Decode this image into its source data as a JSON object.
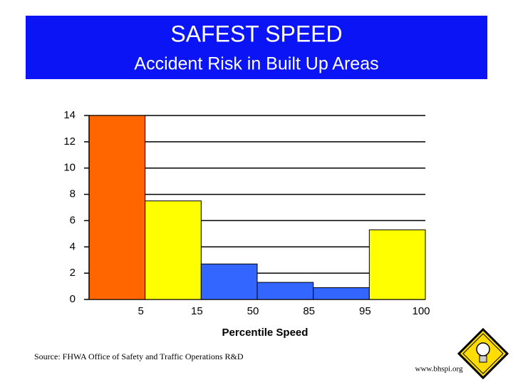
{
  "chart_data": {
    "type": "bar",
    "title": "SAFEST SPEED",
    "subtitle": "Accident Risk in Built Up Areas",
    "x_label": "Percentile Speed",
    "categories": [
      "5",
      "15",
      "50",
      "85",
      "95",
      "100"
    ],
    "values": [
      14,
      7.5,
      2.7,
      1.3,
      0.9,
      5.3
    ],
    "colors": [
      "#ff6600",
      "#ffff00",
      "#3366ff",
      "#3366ff",
      "#3366ff",
      "#ffff00"
    ],
    "ylim": [
      0,
      14
    ],
    "yticks": [
      0,
      2,
      4,
      6,
      8,
      10,
      12,
      14
    ],
    "grid": true
  },
  "footer": {
    "source": "Source: FHWA Office of Safety and Traffic Operations R&D",
    "website": "www.bhspi.org"
  }
}
